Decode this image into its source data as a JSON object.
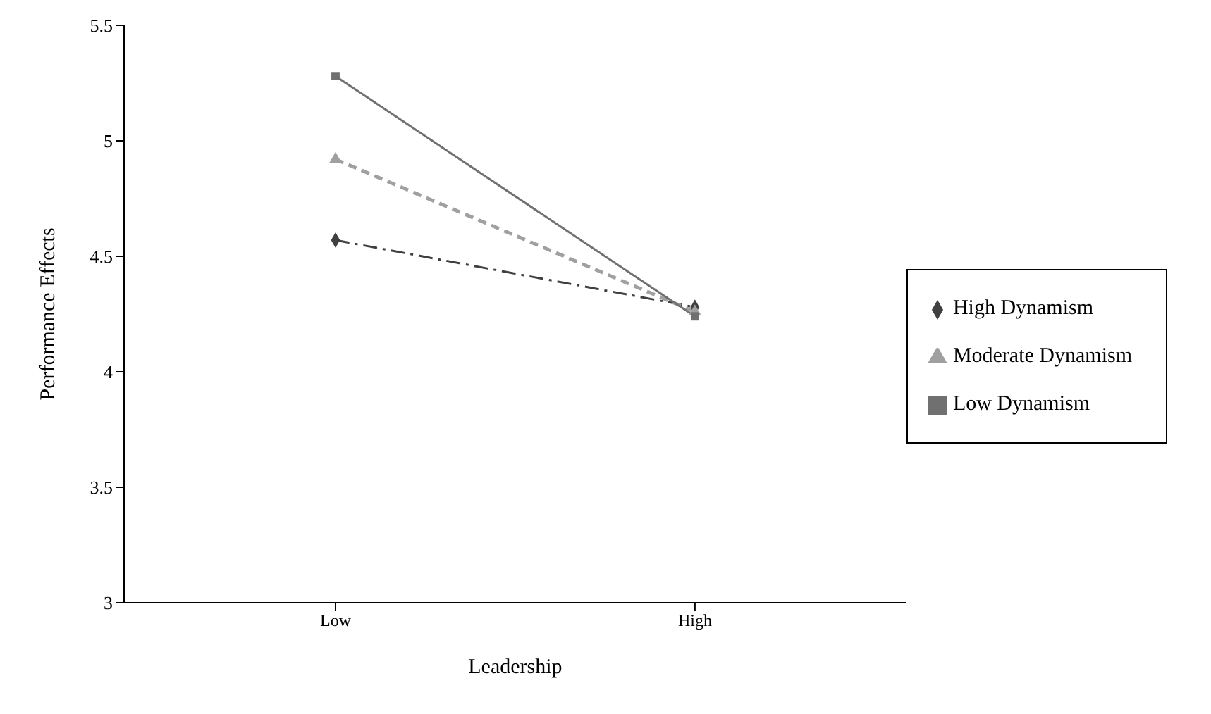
{
  "chart_data": {
    "type": "line",
    "xlabel": "Leadership",
    "ylabel": "Performance Effects",
    "categories": [
      "Low",
      "High"
    ],
    "ylim": [
      3,
      5.5
    ],
    "yticks": [
      3,
      3.5,
      4,
      4.5,
      5,
      5.5
    ],
    "grid": false,
    "legend": "right",
    "series": [
      {
        "name": "High Dynamism",
        "color": "#404040",
        "values": [
          4.57,
          4.28
        ],
        "marker": "diamond",
        "line_style": "dashdot"
      },
      {
        "name": "Moderate Dynamism",
        "color": "#a0a0a0",
        "values": [
          4.92,
          4.26
        ],
        "marker": "triangle",
        "line_style": "dashed"
      },
      {
        "name": "Low Dynamism",
        "color": "#707070",
        "values": [
          5.28,
          4.24
        ],
        "marker": "square",
        "line_style": "solid"
      }
    ]
  }
}
